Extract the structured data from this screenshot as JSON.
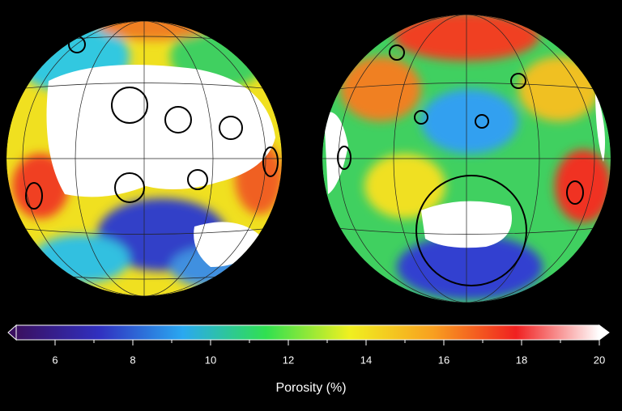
{
  "colorbar": {
    "label": "Porosity (%)",
    "lim": [
      5,
      20
    ],
    "ticks": [
      6,
      8,
      10,
      12,
      14,
      16,
      18,
      20
    ],
    "minor_ticks": [
      7,
      9,
      11,
      13,
      15,
      17,
      19
    ],
    "colors": [
      "#3a1060",
      "#3030c0",
      "#2aa8f0",
      "#30e050",
      "#f0f020",
      "#f8a020",
      "#f02020",
      "#ffffff"
    ]
  }
}
